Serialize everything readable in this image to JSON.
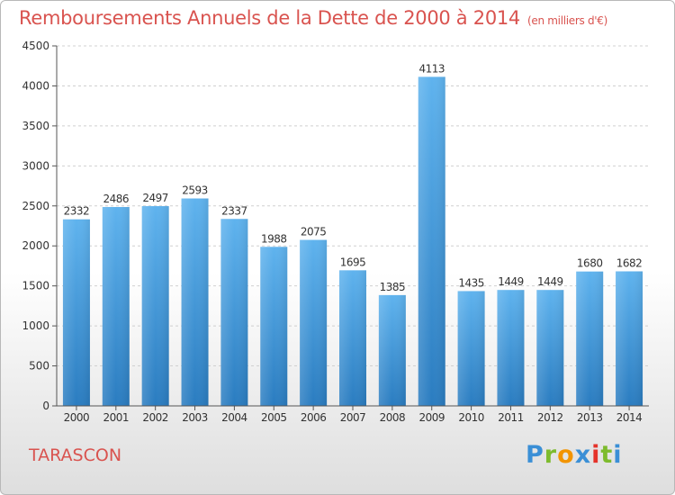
{
  "header": {
    "title": "Remboursements Annuels de la Dette de 2000 à 2014",
    "subtitle": "(en milliers d'€)"
  },
  "footer": {
    "city": "TARASCON",
    "logo_text": "Proxiti",
    "logo_letters": [
      "P",
      "r",
      "o",
      "x",
      "i",
      "t",
      "i"
    ],
    "logo_colors": [
      "#3a8fd6",
      "#7dbb2d",
      "#f29400",
      "#3a8fd6",
      "#e5332a",
      "#7dbb2d",
      "#3a8fd6"
    ]
  },
  "colors": {
    "accent": "#d9534f",
    "bar": "#4a9ee0"
  },
  "chart_data": {
    "type": "bar",
    "title": "Remboursements Annuels de la Dette de 2000 à 2014",
    "categories": [
      "2000",
      "2001",
      "2002",
      "2003",
      "2004",
      "2005",
      "2006",
      "2007",
      "2008",
      "2009",
      "2010",
      "2011",
      "2012",
      "2013",
      "2014"
    ],
    "values": [
      2332,
      2486,
      2497,
      2593,
      2337,
      1988,
      2075,
      1695,
      1385,
      4113,
      1435,
      1449,
      1449,
      1680,
      1682
    ],
    "ylim": [
      0,
      4500
    ],
    "yticks": [
      0,
      500,
      1000,
      1500,
      2000,
      2500,
      3000,
      3500,
      4000,
      4500
    ],
    "grid": true,
    "xlabel": "",
    "ylabel": ""
  }
}
